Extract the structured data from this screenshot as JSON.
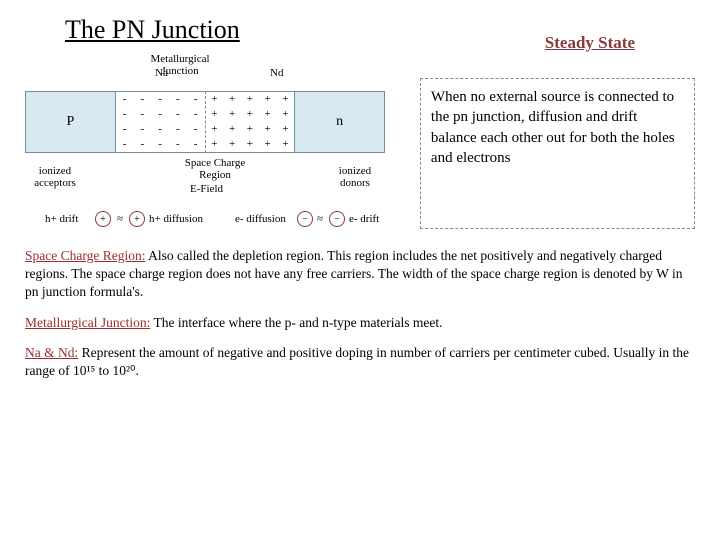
{
  "title": "The PN Junction",
  "subtitle": "Steady State",
  "diagram": {
    "junction_label": "Metallurgical Junction",
    "na_label": "Na",
    "nd_label": "Nd",
    "p_label": "P",
    "n_label": "n",
    "neg_symbol": "-",
    "pos_symbol": "+",
    "neg_grid": {
      "rows": 4,
      "cols": 5
    },
    "pos_grid": {
      "rows": 4,
      "cols": 5
    },
    "ionized_acceptors": "ionized acceptors",
    "ionized_donors": "ionized donors",
    "scr_label": "Space Charge Region",
    "efield_label": "E-Field",
    "hdrift": "h+ drift",
    "hdiff": "h+ diffusion",
    "ediff": "e- diffusion",
    "edrift": "e- drift",
    "approx": "≈",
    "plus": "+",
    "minus": "−",
    "p_region_color": "#d8e8f0",
    "n_region_color": "#d8e8f0",
    "border_color": "#7090a0"
  },
  "explain": "When no external source is connected to the pn junction, diffusion and drift balance each other out for both the holes and electrons",
  "defs": {
    "scr_term": "Space Charge Region:",
    "scr_text": "  Also called the depletion region.  This region includes the net positively and negatively charged regions.  The space charge region does not have any free carriers.  The width of the space charge region is denoted by W in pn junction formula's.",
    "met_term": "Metallurgical Junction:",
    "met_text": "  The interface where the p- and n-type materials meet.",
    "nand_term": "Na & Nd:",
    "nand_text": "  Represent the amount of negative and positive doping in number of carriers per centimeter cubed.  Usually in the range of 10¹⁵ to 10²⁰."
  }
}
